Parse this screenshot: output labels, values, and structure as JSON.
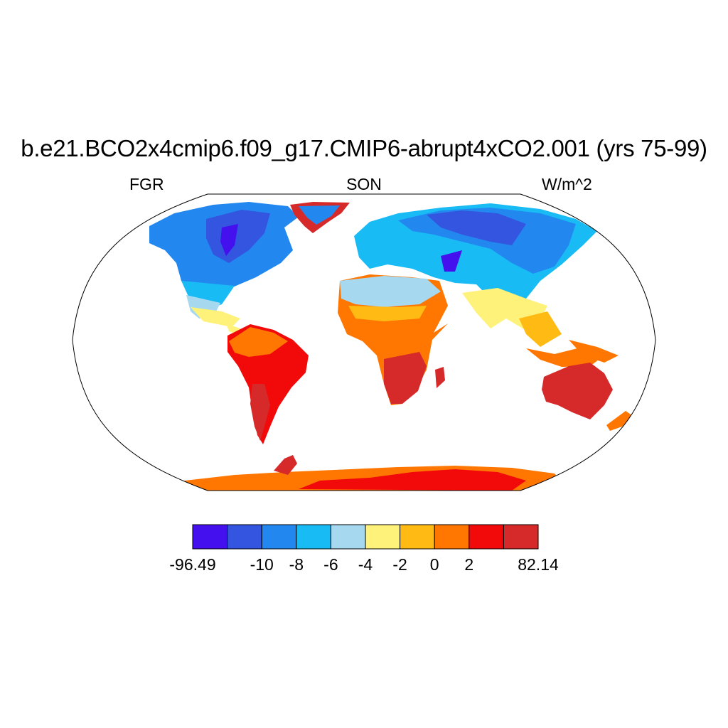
{
  "title": "b.e21.BCO2x4cmip6.f09_g17.CMIP6-abrupt4xCO2.001 (yrs 75-99)",
  "left_label": "FGR",
  "center_label": "SON",
  "right_label": "W/m^2",
  "colorbar": {
    "colors": [
      "#4411ee",
      "#3355e0",
      "#2288f0",
      "#19bbf5",
      "#a6d8f0",
      "#fff27a",
      "#ffbb14",
      "#ff7700",
      "#f20a0a",
      "#d62a2a"
    ],
    "tick_labels": [
      "-96.49",
      "-10",
      "-8",
      "-6",
      "-4",
      "-2",
      "0",
      "2",
      "82.14"
    ]
  }
}
